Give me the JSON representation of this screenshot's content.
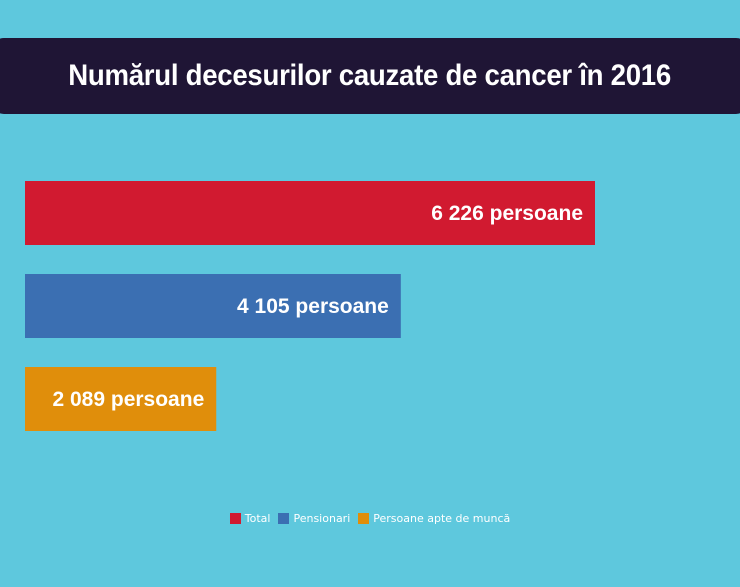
{
  "chart_data": {
    "type": "bar",
    "orientation": "horizontal",
    "title": "Numărul decesurilor cauzate de cancer în 2016",
    "categories": [
      "Total",
      "Pensionari",
      "Persoane apte de muncă"
    ],
    "values": [
      6226,
      4105,
      2089
    ],
    "value_labels": [
      "6 226 persoane",
      "4 105 persoane",
      "2 089 persoane"
    ],
    "colors": [
      "#d11a30",
      "#3b6fb2",
      "#e08e0b"
    ],
    "xlim": [
      0,
      8000
    ],
    "grid": false,
    "legend": {
      "position": "bottom",
      "items": [
        "Total",
        "Pensionari",
        "Persoane apte de muncă"
      ]
    }
  }
}
